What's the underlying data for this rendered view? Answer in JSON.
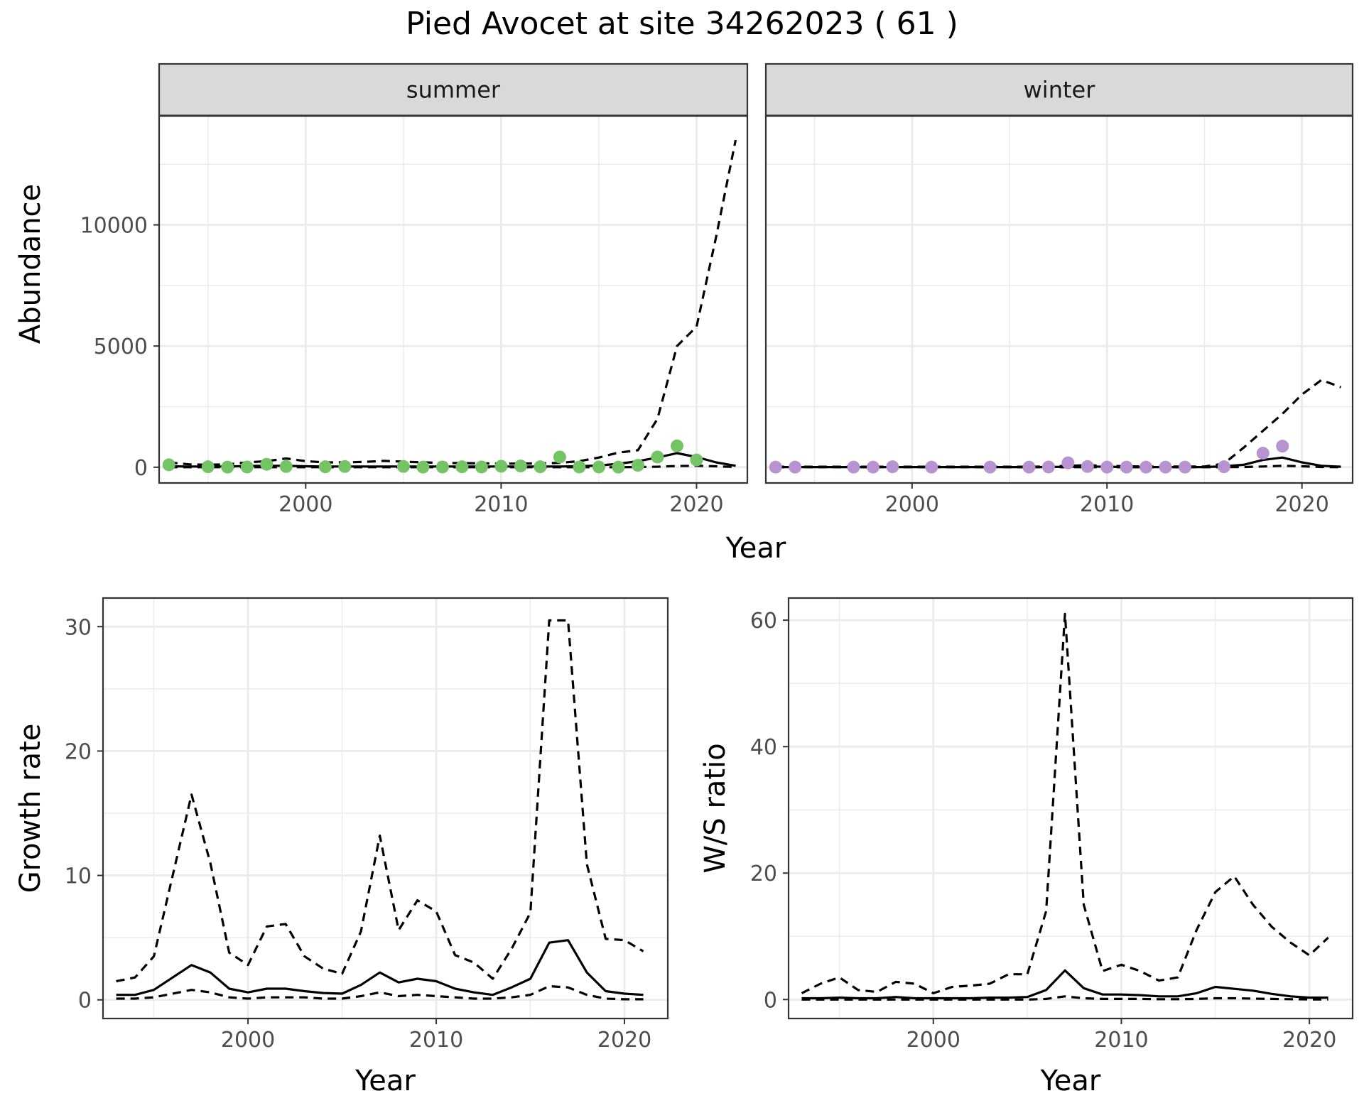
{
  "figure": {
    "title": "Pied Avocet at site 34262023 ( 61 )"
  },
  "colors": {
    "summer": "#74c365",
    "winter": "#b794cf",
    "line": "#000000",
    "grid": "#ebebeb",
    "strip": "#d9d9d9",
    "axis_text": "#4d4d4d"
  },
  "chart_data": [
    {
      "id": "abundance",
      "type": "line",
      "facets": [
        "summer",
        "winter"
      ],
      "xlabel": "Year",
      "ylabel": "Abundance",
      "xlim": [
        1992.5,
        2022.6
      ],
      "ylim": [
        -650,
        14500
      ],
      "xticks": [
        2000,
        2010,
        2020
      ],
      "yticks": [
        0,
        5000,
        10000
      ],
      "years": [
        1993,
        1994,
        1995,
        1996,
        1997,
        1998,
        1999,
        2000,
        2001,
        2002,
        2003,
        2004,
        2005,
        2006,
        2007,
        2008,
        2009,
        2010,
        2011,
        2012,
        2013,
        2014,
        2015,
        2016,
        2017,
        2018,
        2019,
        2020,
        2021,
        2022
      ],
      "panels": [
        {
          "facet": "summer",
          "points_x": [
            1993,
            1995,
            1996,
            1997,
            1998,
            1999,
            2001,
            2002,
            2005,
            2006,
            2007,
            2008,
            2009,
            2010,
            2011,
            2012,
            2013,
            2014,
            2015,
            2016,
            2017,
            2018,
            2019,
            2020
          ],
          "points_y": [
            100,
            20,
            5,
            10,
            120,
            30,
            20,
            30,
            30,
            5,
            10,
            20,
            10,
            40,
            50,
            20,
            420,
            10,
            10,
            5,
            80,
            420,
            880,
            300
          ],
          "series": [
            {
              "role": "estimate",
              "style": "solid",
              "values": [
                40,
                30,
                30,
                30,
                50,
                60,
                60,
                40,
                30,
                30,
                30,
                30,
                30,
                30,
                30,
                30,
                30,
                30,
                30,
                30,
                30,
                40,
                70,
                140,
                250,
                400,
                580,
                420,
                200,
                60
              ]
            },
            {
              "role": "upper",
              "style": "dashed",
              "values": [
                200,
                120,
                100,
                120,
                200,
                250,
                360,
                250,
                200,
                200,
                220,
                260,
                230,
                200,
                180,
                170,
                160,
                150,
                150,
                160,
                180,
                250,
                400,
                600,
                700,
                2000,
                5000,
                5800,
                9500,
                13500
              ]
            },
            {
              "role": "lower",
              "style": "dashed",
              "values": [
                0,
                0,
                0,
                0,
                0,
                0,
                0,
                0,
                0,
                0,
                0,
                0,
                0,
                0,
                0,
                0,
                0,
                0,
                0,
                0,
                0,
                0,
                0,
                0,
                10,
                20,
                50,
                60,
                40,
                10
              ]
            }
          ]
        },
        {
          "facet": "winter",
          "points_x": [
            1993,
            1994,
            1997,
            1998,
            1999,
            2001,
            2004,
            2006,
            2007,
            2008,
            2009,
            2010,
            2011,
            2012,
            2013,
            2014,
            2016,
            2018,
            2019
          ],
          "points_y": [
            5,
            5,
            5,
            5,
            20,
            5,
            5,
            5,
            10,
            180,
            30,
            5,
            5,
            5,
            5,
            5,
            20,
            580,
            870
          ],
          "series": [
            {
              "role": "estimate",
              "style": "solid",
              "values": [
                5,
                5,
                5,
                5,
                5,
                5,
                5,
                5,
                5,
                5,
                5,
                5,
                5,
                5,
                10,
                20,
                30,
                20,
                10,
                5,
                5,
                5,
                5,
                40,
                100,
                300,
                400,
                200,
                60,
                20
              ]
            },
            {
              "role": "upper",
              "style": "dashed",
              "values": [
                20,
                20,
                20,
                20,
                20,
                20,
                20,
                20,
                20,
                20,
                20,
                20,
                20,
                20,
                30,
                60,
                80,
                60,
                40,
                30,
                30,
                30,
                30,
                150,
                800,
                1500,
                2200,
                3000,
                3600,
                3300
              ]
            },
            {
              "role": "lower",
              "style": "dashed",
              "values": [
                0,
                0,
                0,
                0,
                0,
                0,
                0,
                0,
                0,
                0,
                0,
                0,
                0,
                0,
                0,
                0,
                0,
                0,
                0,
                0,
                0,
                0,
                0,
                0,
                10,
                30,
                60,
                40,
                10,
                0
              ]
            }
          ]
        }
      ]
    },
    {
      "id": "growth",
      "type": "line",
      "xlabel": "Year",
      "ylabel": "Growth rate",
      "xlim": [
        1992.3,
        2022.3
      ],
      "ylim": [
        -1.5,
        32.3
      ],
      "xticks": [
        2000,
        2010,
        2020
      ],
      "yticks": [
        0,
        10,
        20,
        30
      ],
      "years": [
        1993,
        1994,
        1995,
        1996,
        1997,
        1998,
        1999,
        2000,
        2001,
        2002,
        2003,
        2004,
        2005,
        2006,
        2007,
        2008,
        2009,
        2010,
        2011,
        2012,
        2013,
        2014,
        2015,
        2016,
        2017,
        2018,
        2019,
        2020,
        2021
      ],
      "series": [
        {
          "role": "estimate",
          "style": "solid",
          "values": [
            0.4,
            0.4,
            0.8,
            1.8,
            2.8,
            2.2,
            0.9,
            0.6,
            0.9,
            0.9,
            0.7,
            0.55,
            0.5,
            1.2,
            2.2,
            1.4,
            1.7,
            1.5,
            0.9,
            0.6,
            0.4,
            1.0,
            1.7,
            4.6,
            4.8,
            2.2,
            0.7,
            0.5,
            0.4
          ]
        },
        {
          "role": "upper",
          "style": "dashed",
          "values": [
            1.5,
            1.8,
            3.5,
            10,
            16.5,
            11,
            3.8,
            2.8,
            5.9,
            6.1,
            3.5,
            2.5,
            2.1,
            5.5,
            13.2,
            5.6,
            8.0,
            7.1,
            3.6,
            3.0,
            1.7,
            4.1,
            7.0,
            30.5,
            30.5,
            10.9,
            4.9,
            4.8,
            3.9
          ]
        },
        {
          "role": "lower",
          "style": "dashed",
          "values": [
            0.1,
            0.1,
            0.2,
            0.5,
            0.8,
            0.6,
            0.2,
            0.1,
            0.2,
            0.2,
            0.2,
            0.1,
            0.1,
            0.3,
            0.6,
            0.3,
            0.4,
            0.3,
            0.2,
            0.1,
            0.1,
            0.2,
            0.4,
            1.1,
            1.0,
            0.4,
            0.1,
            0.05,
            0.05
          ]
        }
      ]
    },
    {
      "id": "ws_ratio",
      "type": "line",
      "xlabel": "Year",
      "ylabel": "W/S ratio",
      "xlim": [
        1992.3,
        2022.3
      ],
      "ylim": [
        -3.0,
        63.5
      ],
      "xticks": [
        2000,
        2010,
        2020
      ],
      "yticks": [
        0,
        20,
        40,
        60
      ],
      "years": [
        1993,
        1994,
        1995,
        1996,
        1997,
        1998,
        1999,
        2000,
        2001,
        2002,
        2003,
        2004,
        2005,
        2006,
        2007,
        2008,
        2009,
        2010,
        2011,
        2012,
        2013,
        2014,
        2015,
        2016,
        2017,
        2018,
        2019,
        2020,
        2021
      ],
      "series": [
        {
          "role": "estimate",
          "style": "solid",
          "values": [
            0.2,
            0.2,
            0.3,
            0.2,
            0.2,
            0.4,
            0.2,
            0.2,
            0.2,
            0.2,
            0.3,
            0.3,
            0.4,
            1.5,
            4.6,
            1.8,
            0.8,
            0.8,
            0.7,
            0.5,
            0.5,
            1.0,
            2.0,
            1.7,
            1.4,
            0.9,
            0.5,
            0.3,
            0.3
          ]
        },
        {
          "role": "upper",
          "style": "dashed",
          "values": [
            1.0,
            2.5,
            3.5,
            1.5,
            1.2,
            2.8,
            2.5,
            1.0,
            2.0,
            2.2,
            2.5,
            4.0,
            4.0,
            14.0,
            61.0,
            15.0,
            4.5,
            5.5,
            4.5,
            3.0,
            3.5,
            11.0,
            17.0,
            19.5,
            15.0,
            11.5,
            9.0,
            7.0,
            9.8
          ]
        },
        {
          "role": "lower",
          "style": "dashed",
          "values": [
            0,
            0,
            0,
            0,
            0,
            0,
            0,
            0,
            0,
            0,
            0,
            0,
            0,
            0.1,
            0.5,
            0.2,
            0.1,
            0.1,
            0.1,
            0.05,
            0.05,
            0.1,
            0.2,
            0.2,
            0.15,
            0.1,
            0.05,
            0.02,
            0.02
          ]
        }
      ]
    }
  ]
}
